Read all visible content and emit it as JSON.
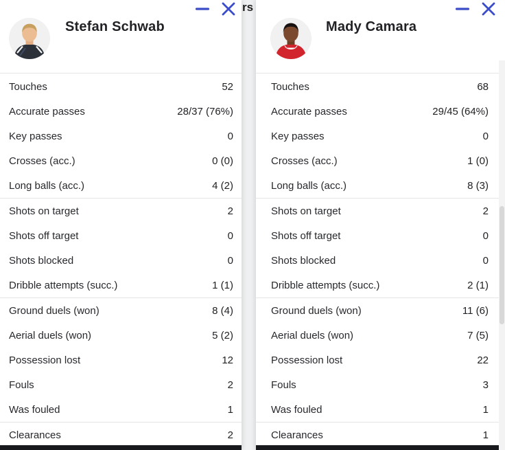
{
  "colors": {
    "accent_blue": "#3b4cc8",
    "text": "#24262b",
    "divider": "#e6e6e6",
    "dark_bottom_bar": "#17191d",
    "page_background": "#eff0f2",
    "card_background": "#ffffff"
  },
  "background": {
    "partial_text": "rs"
  },
  "icons": {
    "minimize": "−",
    "close": "×"
  },
  "cards": [
    {
      "player_name": "Stefan Schwab",
      "groups": [
        {
          "rows": [
            {
              "label": "Touches",
              "value": "52"
            },
            {
              "label": "Accurate passes",
              "value": "28/37 (76%)"
            },
            {
              "label": "Key passes",
              "value": "0"
            },
            {
              "label": "Crosses (acc.)",
              "value": "0 (0)"
            },
            {
              "label": "Long balls (acc.)",
              "value": "4 (2)"
            }
          ]
        },
        {
          "rows": [
            {
              "label": "Shots on target",
              "value": "2"
            },
            {
              "label": "Shots off target",
              "value": "0"
            },
            {
              "label": "Shots blocked",
              "value": "0"
            },
            {
              "label": "Dribble attempts (succ.)",
              "value": "1 (1)"
            }
          ]
        },
        {
          "rows": [
            {
              "label": "Ground duels (won)",
              "value": "8 (4)"
            },
            {
              "label": "Aerial duels (won)",
              "value": "5 (2)"
            },
            {
              "label": "Possession lost",
              "value": "12"
            },
            {
              "label": "Fouls",
              "value": "2"
            },
            {
              "label": "Was fouled",
              "value": "1"
            }
          ]
        },
        {
          "rows": [
            {
              "label": "Clearances",
              "value": "2"
            }
          ]
        }
      ]
    },
    {
      "player_name": "Mady Camara",
      "groups": [
        {
          "rows": [
            {
              "label": "Touches",
              "value": "68"
            },
            {
              "label": "Accurate passes",
              "value": "29/45 (64%)"
            },
            {
              "label": "Key passes",
              "value": "0"
            },
            {
              "label": "Crosses (acc.)",
              "value": "1 (0)"
            },
            {
              "label": "Long balls (acc.)",
              "value": "8 (3)"
            }
          ]
        },
        {
          "rows": [
            {
              "label": "Shots on target",
              "value": "2"
            },
            {
              "label": "Shots off target",
              "value": "0"
            },
            {
              "label": "Shots blocked",
              "value": "0"
            },
            {
              "label": "Dribble attempts (succ.)",
              "value": "2 (1)"
            }
          ]
        },
        {
          "rows": [
            {
              "label": "Ground duels (won)",
              "value": "11 (6)"
            },
            {
              "label": "Aerial duels (won)",
              "value": "7 (5)"
            },
            {
              "label": "Possession lost",
              "value": "22"
            },
            {
              "label": "Fouls",
              "value": "3"
            },
            {
              "label": "Was fouled",
              "value": "1"
            }
          ]
        },
        {
          "rows": [
            {
              "label": "Clearances",
              "value": "1"
            }
          ]
        }
      ]
    }
  ]
}
